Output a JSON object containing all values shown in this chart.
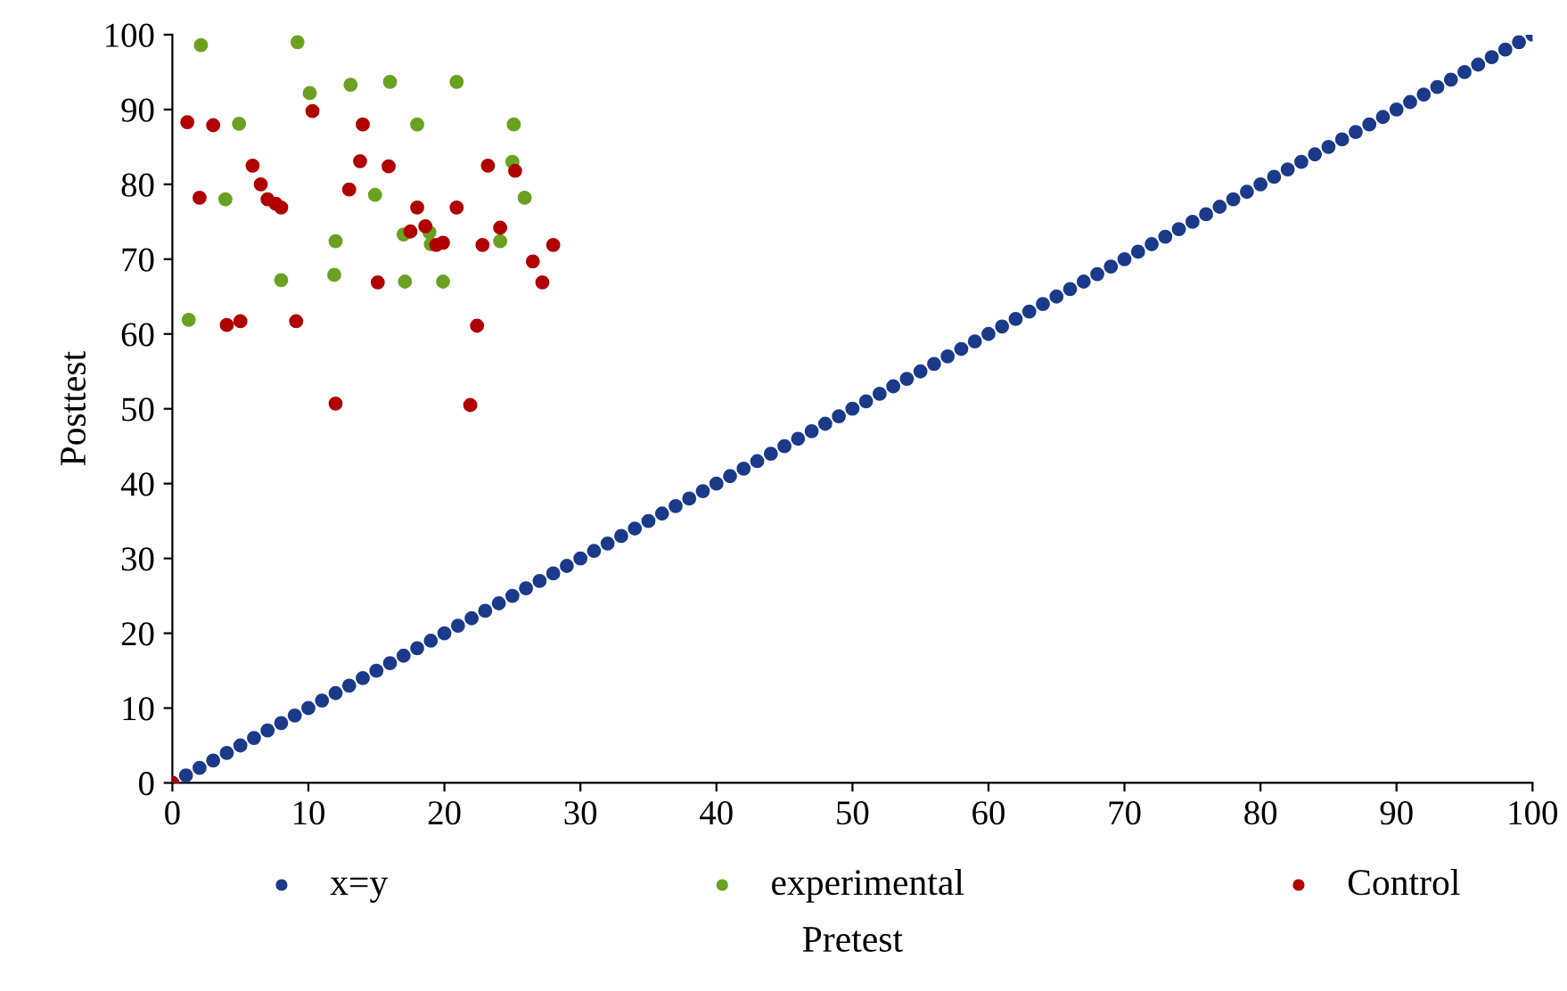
{
  "chart_data": {
    "type": "scatter",
    "xlabel": "Pretest",
    "ylabel": "Posttest",
    "xlim": [
      0,
      100
    ],
    "ylim": [
      0,
      100
    ],
    "xticks": [
      0,
      10,
      20,
      30,
      40,
      50,
      60,
      70,
      80,
      90,
      100
    ],
    "yticks": [
      0,
      10,
      20,
      30,
      40,
      50,
      60,
      70,
      80,
      90,
      100
    ],
    "grid": false,
    "legend": "bottom",
    "marker": "circle",
    "series": [
      {
        "name": "x=y",
        "color": "#1b3a8a",
        "x": [
          0,
          1,
          2,
          3,
          4,
          5,
          6,
          7,
          8,
          9,
          10,
          11,
          12,
          13,
          14,
          15,
          16,
          17,
          18,
          19,
          20,
          21,
          22,
          23,
          24,
          25,
          26,
          27,
          28,
          29,
          30,
          31,
          32,
          33,
          34,
          35,
          36,
          37,
          38,
          39,
          40,
          41,
          42,
          43,
          44,
          45,
          46,
          47,
          48,
          49,
          50,
          51,
          52,
          53,
          54,
          55,
          56,
          57,
          58,
          59,
          60,
          61,
          62,
          63,
          64,
          65,
          66,
          67,
          68,
          69,
          70,
          71,
          72,
          73,
          74,
          75,
          76,
          77,
          78,
          79,
          80,
          81,
          82,
          83,
          84,
          85,
          86,
          87,
          88,
          89,
          90,
          91,
          92,
          93,
          94,
          95,
          96,
          97,
          98,
          99,
          100
        ],
        "values": [
          0,
          1,
          2,
          3,
          4,
          5,
          6,
          7,
          8,
          9,
          10,
          11,
          12,
          13,
          14,
          15,
          16,
          17,
          18,
          19,
          20,
          21,
          22,
          23,
          24,
          25,
          26,
          27,
          28,
          29,
          30,
          31,
          32,
          33,
          34,
          35,
          36,
          37,
          38,
          39,
          40,
          41,
          42,
          43,
          44,
          45,
          46,
          47,
          48,
          49,
          50,
          51,
          52,
          53,
          54,
          55,
          56,
          57,
          58,
          59,
          60,
          61,
          62,
          63,
          64,
          65,
          66,
          67,
          68,
          69,
          70,
          71,
          72,
          73,
          74,
          75,
          76,
          77,
          78,
          79,
          80,
          81,
          82,
          83,
          84,
          85,
          86,
          87,
          88,
          89,
          90,
          91,
          92,
          93,
          94,
          95,
          96,
          97,
          98,
          99,
          100
        ]
      },
      {
        "name": "experimental",
        "color": "#6aa121",
        "x": [
          2.1,
          9.2,
          10.1,
          13.1,
          4.9,
          3.9,
          12.0,
          8.0,
          11.9,
          1.2,
          14.9,
          16.0,
          20.9,
          18.0,
          25.1,
          25.0,
          25.9,
          17.0,
          18.9,
          19.0,
          24.1,
          17.1,
          19.9
        ],
        "values": [
          98.6,
          99.0,
          92.2,
          93.3,
          88.1,
          78.0,
          72.4,
          67.2,
          67.9,
          61.9,
          78.6,
          93.7,
          93.7,
          88.0,
          88.0,
          83.0,
          78.2,
          73.3,
          73.6,
          72.0,
          72.4,
          67.0,
          67.0
        ]
      },
      {
        "name": "Control",
        "color": "#b00000",
        "x": [
          0,
          1.1,
          3.0,
          10.3,
          14.0,
          5.9,
          13.8,
          15.9,
          6.5,
          2.0,
          7.0,
          7.6,
          8.0,
          13.0,
          15.1,
          4.0,
          5.0,
          9.1,
          12.0,
          23.2,
          25.2,
          18.0,
          20.9,
          17.5,
          18.6,
          24.1,
          19.4,
          19.9,
          22.8,
          28.0,
          26.5,
          27.2,
          22.4,
          21.9
        ],
        "values": [
          0,
          88.3,
          87.9,
          89.8,
          88.0,
          82.5,
          83.1,
          82.4,
          80.0,
          78.2,
          78.0,
          77.4,
          76.9,
          79.3,
          66.9,
          61.2,
          61.7,
          61.7,
          50.7,
          82.5,
          81.8,
          76.9,
          76.9,
          73.7,
          74.4,
          74.2,
          71.9,
          72.2,
          71.9,
          71.9,
          69.7,
          66.9,
          61.1,
          50.5
        ]
      }
    ]
  }
}
